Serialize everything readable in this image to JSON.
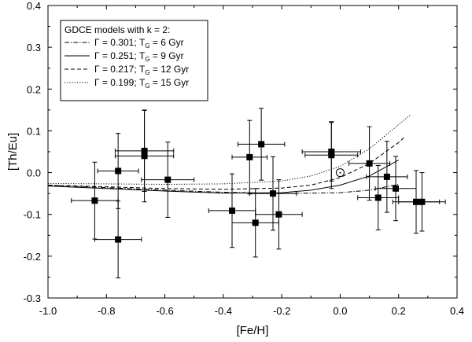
{
  "chart_data": {
    "type": "scatter",
    "xlabel": "[Fe/H]",
    "ylabel": "[Th/Eu]",
    "xlim": [
      -1.0,
      0.4
    ],
    "ylim": [
      -0.3,
      0.4
    ],
    "x_ticks": [
      "-1.0",
      "-0.8",
      "-0.6",
      "-0.4",
      "-0.2",
      "0.0",
      "0.2",
      "0.4"
    ],
    "y_ticks": [
      "-0.3",
      "-0.2",
      "-0.1",
      "0.0",
      "0.1",
      "0.2",
      "0.3",
      "0.4"
    ],
    "legend": {
      "title": "GDCE models with k = 2:",
      "position": "top-left",
      "entries": [
        {
          "gamma_text": "Γ = 0.301; T",
          "sub": "G",
          "age_text": " =   6 Gyr",
          "dash": "dashdot"
        },
        {
          "gamma_text": "Γ = 0.251; T",
          "sub": "G",
          "age_text": " =   9 Gyr",
          "dash": "solid"
        },
        {
          "gamma_text": "Γ = 0.217; T",
          "sub": "G",
          "age_text": " = 12 Gyr",
          "dash": "dashed"
        },
        {
          "gamma_text": "Γ = 0.199; T",
          "sub": "G",
          "age_text": " = 15 Gyr",
          "dash": "dotted"
        }
      ]
    },
    "series": [
      {
        "dash": "dashdot",
        "x": [
          -1.0,
          -0.8,
          -0.6,
          -0.4,
          -0.2,
          0.0,
          0.1,
          0.2
        ],
        "y": [
          -0.03,
          -0.036,
          -0.042,
          -0.047,
          -0.05,
          -0.048,
          -0.042,
          -0.028
        ]
      },
      {
        "dash": "solid",
        "x": [
          -1.0,
          -0.8,
          -0.6,
          -0.4,
          -0.2,
          -0.1,
          0.0,
          0.1,
          0.2
        ],
        "y": [
          -0.032,
          -0.038,
          -0.044,
          -0.049,
          -0.048,
          -0.042,
          -0.03,
          -0.008,
          0.03
        ]
      },
      {
        "dash": "dashed",
        "x": [
          -1.0,
          -0.8,
          -0.6,
          -0.4,
          -0.2,
          -0.1,
          0.0,
          0.1,
          0.2,
          0.22
        ],
        "y": [
          -0.03,
          -0.034,
          -0.038,
          -0.04,
          -0.037,
          -0.03,
          -0.012,
          0.022,
          0.072,
          0.085
        ]
      },
      {
        "dash": "dotted",
        "x": [
          -1.0,
          -0.8,
          -0.6,
          -0.4,
          -0.2,
          -0.1,
          0.0,
          0.1,
          0.2,
          0.24
        ],
        "y": [
          -0.026,
          -0.027,
          -0.028,
          -0.027,
          -0.02,
          -0.008,
          0.015,
          0.057,
          0.115,
          0.138
        ]
      }
    ],
    "points": [
      {
        "x": -0.84,
        "y": -0.067,
        "xerr": 0.08,
        "yerr": 0.092
      },
      {
        "x": -0.76,
        "y": 0.004,
        "xerr": 0.07,
        "yerr": 0.09
      },
      {
        "x": -0.76,
        "y": -0.16,
        "xerr": 0.08,
        "yerr": 0.092
      },
      {
        "x": -0.67,
        "y": 0.052,
        "xerr": 0.1,
        "yerr": 0.097
      },
      {
        "x": -0.67,
        "y": 0.04,
        "xerr": 0.1,
        "yerr": 0.11
      },
      {
        "x": -0.59,
        "y": -0.017,
        "xerr": 0.09,
        "yerr": 0.09
      },
      {
        "x": -0.37,
        "y": -0.091,
        "xerr": 0.08,
        "yerr": 0.088
      },
      {
        "x": -0.31,
        "y": 0.037,
        "xerr": 0.06,
        "yerr": 0.088
      },
      {
        "x": -0.29,
        "y": -0.12,
        "xerr": 0.08,
        "yerr": 0.082
      },
      {
        "x": -0.27,
        "y": 0.068,
        "xerr": 0.08,
        "yerr": 0.086
      },
      {
        "x": -0.23,
        "y": -0.05,
        "xerr": 0.08,
        "yerr": 0.088
      },
      {
        "x": -0.21,
        "y": -0.1,
        "xerr": 0.08,
        "yerr": 0.083
      },
      {
        "x": -0.03,
        "y": 0.05,
        "xerr": 0.1,
        "yerr": 0.07
      },
      {
        "x": -0.03,
        "y": 0.042,
        "xerr": 0.09,
        "yerr": 0.08
      },
      {
        "x": 0.1,
        "y": 0.022,
        "xerr": 0.07,
        "yerr": 0.088
      },
      {
        "x": 0.13,
        "y": -0.06,
        "xerr": 0.07,
        "yerr": 0.077
      },
      {
        "x": 0.16,
        "y": -0.01,
        "xerr": 0.07,
        "yerr": 0.085
      },
      {
        "x": 0.19,
        "y": -0.038,
        "xerr": 0.07,
        "yerr": 0.077
      },
      {
        "x": 0.26,
        "y": -0.07,
        "xerr": 0.08,
        "yerr": 0.075
      },
      {
        "x": 0.28,
        "y": -0.07,
        "xerr": 0.08,
        "yerr": 0.07
      }
    ],
    "sun": {
      "x": 0.0,
      "y": 0.0
    }
  }
}
